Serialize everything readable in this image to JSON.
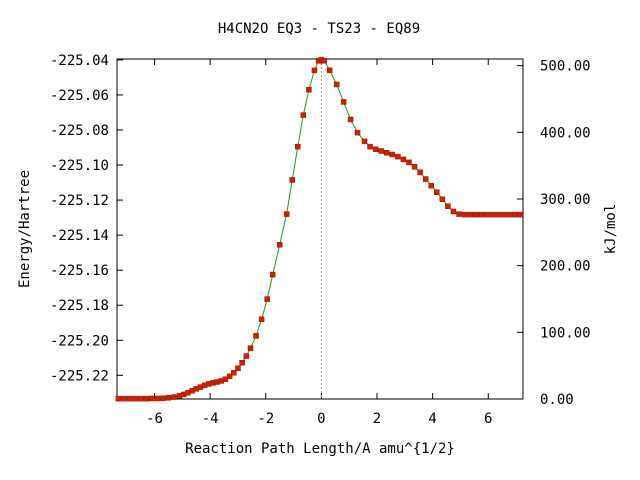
{
  "chart_data": {
    "type": "line",
    "title": "H4CN2O   EQ3 - TS23 - EQ89",
    "xlabel": "Reaction Path Length/A amu^{1/2}",
    "ylabel": "Energy/Hartree",
    "y2label": "kJ/mol",
    "xlim": [
      -7.35,
      7.25
    ],
    "ylim": [
      -225.2335,
      -225.0395
    ],
    "y2lim": [
      0,
      510
    ],
    "x_ticks": [
      -6,
      -4,
      -2,
      0,
      2,
      4,
      6
    ],
    "x_tick_labels": [
      "-6",
      "-4",
      "-2",
      "0",
      "2",
      "4",
      "6"
    ],
    "y_ticks": [
      -225.04,
      -225.06,
      -225.08,
      -225.1,
      -225.12,
      -225.14,
      -225.16,
      -225.18,
      -225.2,
      -225.22
    ],
    "y_tick_labels": [
      "-225.04",
      "-225.06",
      "-225.08",
      "-225.10",
      "-225.12",
      "-225.14",
      "-225.16",
      "-225.18",
      "-225.20",
      "-225.22"
    ],
    "y2_ticks": [
      500,
      400,
      300,
      200,
      100,
      0
    ],
    "y2_tick_labels": [
      "500.00",
      "400.00",
      "300.00",
      "200.00",
      "100.00",
      "0.00"
    ],
    "ts_marker_x": 0,
    "series": [
      {
        "line_color": "#1a9a1a",
        "marker_color": "#cc2200",
        "x": [
          -7.3,
          -7.1,
          -6.9,
          -6.7,
          -6.5,
          -6.3,
          -6.1,
          -5.9,
          -5.7,
          -5.5,
          -5.3,
          -5.1,
          -4.95,
          -4.8,
          -4.65,
          -4.5,
          -4.35,
          -4.2,
          -4.05,
          -3.9,
          -3.75,
          -3.6,
          -3.45,
          -3.3,
          -3.15,
          -3.0,
          -2.85,
          -2.7,
          -2.55,
          -2.35,
          -2.15,
          -1.95,
          -1.75,
          -1.5,
          -1.25,
          -1.05,
          -0.85,
          -0.65,
          -0.45,
          -0.25,
          -0.1,
          0.0,
          0.1,
          0.3,
          0.55,
          0.8,
          1.05,
          1.3,
          1.55,
          1.75,
          1.95,
          2.15,
          2.35,
          2.55,
          2.75,
          2.95,
          3.15,
          3.35,
          3.55,
          3.75,
          3.95,
          4.15,
          4.35,
          4.55,
          4.75,
          4.95,
          5.15,
          5.35,
          5.55,
          5.75,
          5.95,
          6.15,
          6.35,
          6.55,
          6.75,
          6.95,
          7.15
        ],
        "y": [
          -225.2333,
          -225.2333,
          -225.2333,
          -225.2333,
          -225.2333,
          -225.2333,
          -225.2332,
          -225.2332,
          -225.2331,
          -225.2328,
          -225.2324,
          -225.2317,
          -225.2309,
          -225.2299,
          -225.2288,
          -225.2277,
          -225.2267,
          -225.2257,
          -225.2249,
          -225.2243,
          -225.2238,
          -225.2232,
          -225.2222,
          -225.2206,
          -225.2185,
          -225.216,
          -225.2128,
          -225.209,
          -225.2045,
          -225.1975,
          -225.188,
          -225.1765,
          -225.1625,
          -225.1455,
          -225.128,
          -225.1085,
          -225.0895,
          -225.0715,
          -225.057,
          -225.046,
          -225.0405,
          -225.04,
          -225.0405,
          -225.046,
          -225.054,
          -225.064,
          -225.074,
          -225.0815,
          -225.0865,
          -225.0895,
          -225.091,
          -225.092,
          -225.093,
          -225.094,
          -225.0952,
          -225.0968,
          -225.0985,
          -225.101,
          -225.1042,
          -225.108,
          -225.1118,
          -225.1155,
          -225.1195,
          -225.1235,
          -225.1265,
          -225.128,
          -225.1283,
          -225.1283,
          -225.1283,
          -225.1283,
          -225.1283,
          -225.1283,
          -225.1283,
          -225.1283,
          -225.1283,
          -225.1283,
          -225.1283
        ]
      }
    ]
  }
}
